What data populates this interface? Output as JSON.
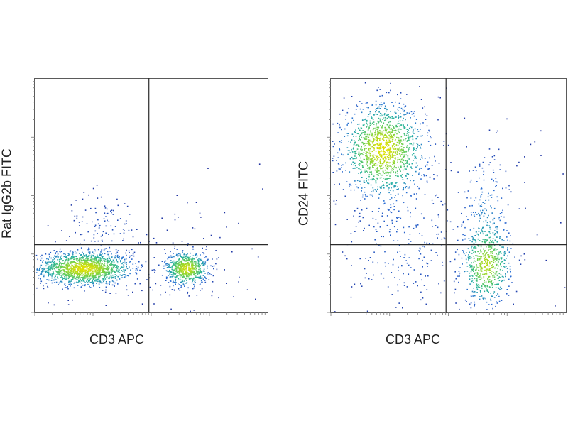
{
  "chart_data": [
    {
      "type": "scatter",
      "subtype": "flow-cytometry-density-dot-plot",
      "title": "",
      "xlabel": "CD3 APC",
      "ylabel": "Rat IgG2b FITC",
      "xscale": "log",
      "yscale": "log",
      "xlim": [
        0,
        1
      ],
      "ylim": [
        0,
        1
      ],
      "quadrant_gate": {
        "x": 0.49,
        "y": 0.29
      },
      "grid": false,
      "legend": "none",
      "colormap": [
        "#1f2f9e",
        "#2a6fd6",
        "#22b0a0",
        "#6fd14a",
        "#e0e000"
      ],
      "populations": [
        {
          "cx": 0.21,
          "cy": 0.19,
          "sx": 0.1,
          "sy": 0.035,
          "weight": 0.62
        },
        {
          "cx": 0.65,
          "cy": 0.19,
          "sx": 0.045,
          "sy": 0.035,
          "weight": 0.26
        },
        {
          "cx": 0.3,
          "cy": 0.38,
          "sx": 0.08,
          "sy": 0.07,
          "weight": 0.04
        },
        {
          "cx": 0.5,
          "cy": 0.2,
          "sx": 0.35,
          "sy": 0.15,
          "weight": 0.08
        }
      ]
    },
    {
      "type": "scatter",
      "subtype": "flow-cytometry-density-dot-plot",
      "title": "",
      "xlabel": "CD3 APC",
      "ylabel": "CD24 FITC",
      "xscale": "log",
      "yscale": "log",
      "xlim": [
        0,
        1
      ],
      "ylim": [
        0,
        1
      ],
      "quadrant_gate": {
        "x": 0.49,
        "y": 0.29
      },
      "grid": false,
      "legend": "none",
      "colormap": [
        "#1f2f9e",
        "#2a6fd6",
        "#22b0a0",
        "#6fd14a",
        "#e0e000"
      ],
      "populations": [
        {
          "cx": 0.22,
          "cy": 0.7,
          "sx": 0.085,
          "sy": 0.095,
          "weight": 0.55
        },
        {
          "cx": 0.66,
          "cy": 0.2,
          "sx": 0.05,
          "sy": 0.08,
          "weight": 0.22
        },
        {
          "cx": 0.66,
          "cy": 0.42,
          "sx": 0.06,
          "sy": 0.14,
          "weight": 0.08
        },
        {
          "cx": 0.3,
          "cy": 0.3,
          "sx": 0.14,
          "sy": 0.16,
          "weight": 0.1
        },
        {
          "cx": 0.5,
          "cy": 0.5,
          "sx": 0.35,
          "sy": 0.3,
          "weight": 0.05
        }
      ]
    }
  ]
}
